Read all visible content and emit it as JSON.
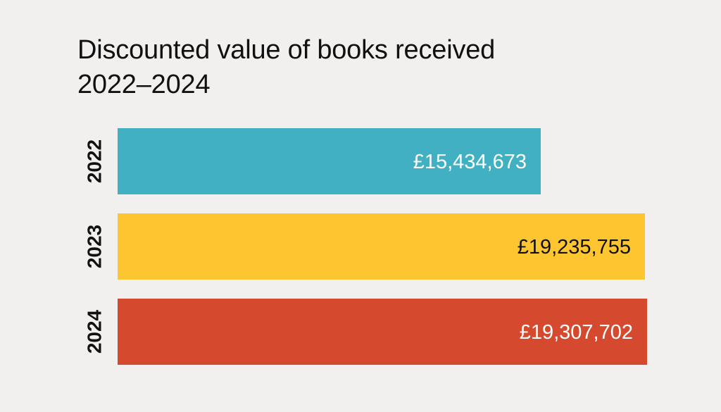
{
  "chart_data": {
    "type": "bar",
    "orientation": "horizontal",
    "title_lines": [
      "Discounted value of books received",
      "2022–2024"
    ],
    "categories": [
      "2022",
      "2023",
      "2024"
    ],
    "values": [
      15434673,
      19235755,
      19307702
    ],
    "value_labels": [
      "£15,434,673",
      "£19,235,755",
      "£19,307,702"
    ],
    "bar_colors": [
      "#41b0c3",
      "#fdc52f",
      "#d54a2e"
    ],
    "label_colors": [
      "#ffffff",
      "#111111",
      "#ffffff"
    ],
    "xlim": [
      0,
      19307702
    ],
    "grid": false,
    "legend": "none"
  }
}
